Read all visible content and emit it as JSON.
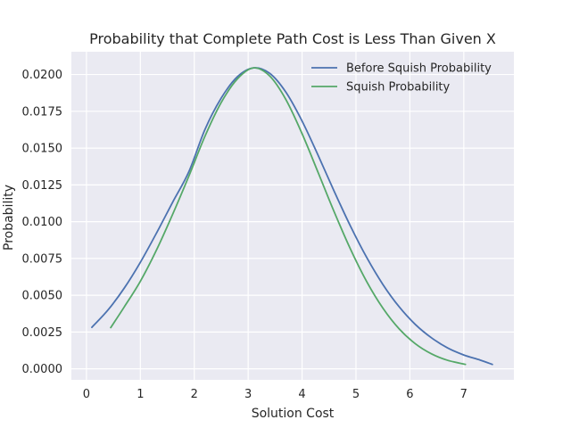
{
  "chart_data": {
    "type": "line",
    "title": "Probability that Complete Path Cost is Less Than Given X",
    "xlabel": "Solution Cost",
    "ylabel": "Probability",
    "xlim": [
      -0.28,
      7.93
    ],
    "ylim": [
      -0.00075,
      0.02155
    ],
    "x_ticks": [
      0,
      1,
      2,
      3,
      4,
      5,
      6,
      7
    ],
    "x_tick_labels": [
      "0",
      "1",
      "2",
      "3",
      "4",
      "5",
      "6",
      "7"
    ],
    "y_ticks": [
      0.0,
      0.0025,
      0.005,
      0.0075,
      0.01,
      0.0125,
      0.015,
      0.0175,
      0.02
    ],
    "y_tick_labels": [
      "0.0000",
      "0.0025",
      "0.0050",
      "0.0075",
      "0.0100",
      "0.0125",
      "0.0150",
      "0.0175",
      "0.0200"
    ],
    "grid": true,
    "legend_position": "top-right",
    "series": [
      {
        "name": "Before Squish Probability",
        "color": "#4c72b0",
        "x": [
          0.1,
          0.4,
          0.7,
          1.0,
          1.3,
          1.6,
          1.9,
          2.2,
          2.5,
          2.8,
          3.1,
          3.4,
          3.7,
          4.0,
          4.3,
          4.6,
          4.9,
          5.2,
          5.5,
          5.8,
          6.1,
          6.4,
          6.7,
          7.0,
          7.3,
          7.53
        ],
        "y": [
          0.00282,
          0.004,
          0.00548,
          0.00724,
          0.00923,
          0.01133,
          0.0134,
          0.01628,
          0.0184,
          0.01985,
          0.02045,
          0.02008,
          0.0188,
          0.01684,
          0.01449,
          0.01203,
          0.00968,
          0.00756,
          0.00573,
          0.00422,
          0.00302,
          0.00211,
          0.00142,
          0.00094,
          0.0006,
          0.0003
        ]
      },
      {
        "name": "Squish Probability",
        "color": "#55a868",
        "x": [
          0.45,
          0.7,
          1.0,
          1.3,
          1.6,
          1.9,
          2.2,
          2.5,
          2.8,
          3.1,
          3.4,
          3.7,
          4.0,
          4.3,
          4.6,
          4.9,
          5.2,
          5.5,
          5.8,
          6.1,
          6.4,
          6.7,
          7.03
        ],
        "y": [
          0.0028,
          0.0042,
          0.00595,
          0.00808,
          0.01051,
          0.0131,
          0.01582,
          0.0181,
          0.0197,
          0.02045,
          0.0199,
          0.0183,
          0.01598,
          0.01332,
          0.01063,
          0.00812,
          0.00592,
          0.00412,
          0.00272,
          0.00171,
          0.00102,
          0.00058,
          0.0003
        ]
      }
    ]
  }
}
